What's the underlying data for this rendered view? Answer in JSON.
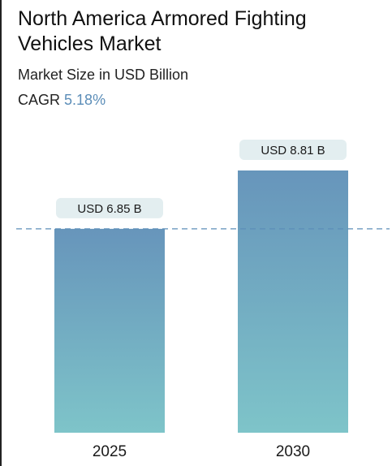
{
  "header": {
    "title": "North America Armored Fighting Vehicles Market",
    "subtitle": "Market Size in USD Billion",
    "cagr_label": "CAGR",
    "cagr_value": "5.18%"
  },
  "colors": {
    "bar_top": "#6795bb",
    "bar_bottom": "#7ec4c9",
    "label_bg": "#e3eef0",
    "dashed_line": "#5b8db8",
    "cagr_accent": "#5b8db8"
  },
  "chart_data": {
    "type": "bar",
    "title": "North America Armored Fighting Vehicles Market",
    "subtitle": "Market Size in USD Billion",
    "categories": [
      "2025",
      "2030"
    ],
    "values": [
      6.85,
      8.81
    ],
    "data_labels": [
      "USD 6.85 B",
      "USD 8.81 B"
    ],
    "ylim": [
      0,
      8.81
    ],
    "reference_line": 6.85,
    "grid": false,
    "legend": "none"
  }
}
